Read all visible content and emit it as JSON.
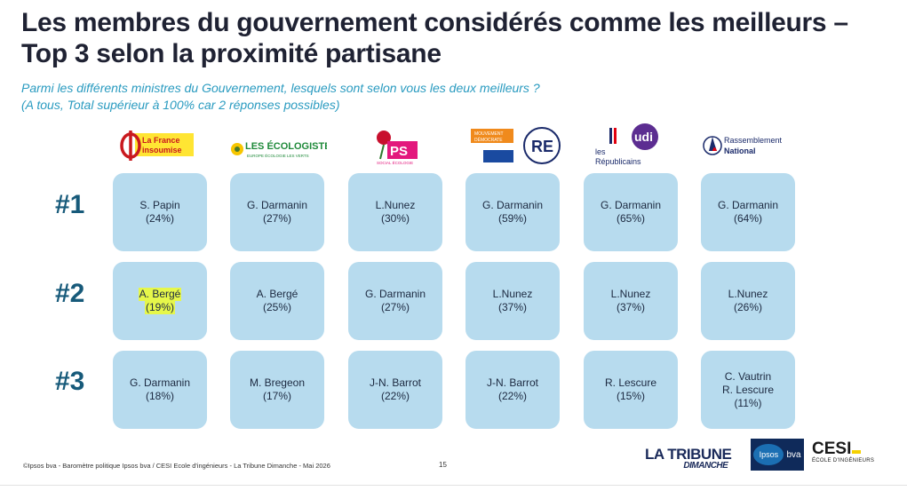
{
  "title": "Les membres du gouvernement considérés comme les meilleurs – Top 3 selon la proximité partisane",
  "subtitle_line1": "Parmi les différents ministres du Gouvernement, lesquels sont selon vous les deux meilleurs ?",
  "subtitle_line2": "(A tous, Total supérieur à 100% car 2 réponses possibles)",
  "parties": [
    {
      "logo_text": "La France insoumise",
      "icon": "lfi-phi-icon",
      "color": "#c9191e"
    },
    {
      "logo_text": "LES ÉCOLOGISTES",
      "logo_sub": "EUROPE ÉCOLOGIE LES VERTS",
      "icon": "ecologistes-sunflower-icon",
      "color": "#1f8a3a"
    },
    {
      "logo_text": "PS",
      "logo_sub": "SOCIAL ÉCOLOGIE",
      "icon": "ps-rose-icon",
      "color": "#e3187d"
    },
    {
      "logo_text": "RE",
      "logo_sub": "MOUVEMENT DÉMOCRATE",
      "icon": "re-modem-icon",
      "color": "#1a2a6a"
    },
    {
      "logo_text": "les Républicains",
      "logo_sub": "udi",
      "icon": "lr-udi-icon",
      "color": "#1a2a6a"
    },
    {
      "logo_text": "Rassemblement National",
      "icon": "rn-flame-icon",
      "color": "#1a2a6a"
    }
  ],
  "ranks": [
    "#1",
    "#2",
    "#3"
  ],
  "grid": [
    [
      {
        "line1": "S. Papin",
        "line2": "(24%)"
      },
      {
        "line1": "G. Darmanin",
        "line2": "(27%)"
      },
      {
        "line1": "L.Nunez",
        "line2": "(30%)"
      },
      {
        "line1": "G. Darmanin",
        "line2": "(59%)"
      },
      {
        "line1": "G. Darmanin",
        "line2": "(65%)"
      },
      {
        "line1": "G. Darmanin",
        "line2": "(64%)"
      }
    ],
    [
      {
        "line1": "A. Bergé",
        "line2": "(19%)"
      },
      {
        "line1": "A. Bergé",
        "line2": "(25%)"
      },
      {
        "line1": "G. Darmanin",
        "line2": "(27%)"
      },
      {
        "line1": "L.Nunez",
        "line2": "(37%)"
      },
      {
        "line1": "L.Nunez",
        "line2": "(37%)"
      },
      {
        "line1": "L.Nunez",
        "line2": "(26%)"
      }
    ],
    [
      {
        "line1": "G. Darmanin",
        "line2": "(18%)"
      },
      {
        "line1": "M. Bregeon",
        "line2": "(17%)"
      },
      {
        "line1": "J-N. Barrot",
        "line2": "(22%)"
      },
      {
        "line1": "J-N. Barrot",
        "line2": "(22%)"
      },
      {
        "line1": "R. Lescure",
        "line2": "(15%)"
      },
      {
        "line1": "C. Vautrin",
        "line2": "R. Lescure",
        "line3": "(11%)"
      }
    ]
  ],
  "footer": "©Ipsos bva - Baromètre politique Ipsos bva / CESI Ecole d'ingénieurs - La Tribune Dimanche - Mai 2026",
  "page_number": "15",
  "brands": {
    "tribune": "LA TRIBUNE",
    "tribune_sub": "DIMANCHE",
    "ipsos": "Ipsos",
    "bva": "bva",
    "cesi": "CESI",
    "cesi_sub": "ÉCOLE D'INGÉNIEURS"
  },
  "colors": {
    "cell_bg": "#b7dbee",
    "rank_color": "#175a7a",
    "subtitle_color": "#2a9bc0",
    "highlight": "#e6f74a"
  }
}
